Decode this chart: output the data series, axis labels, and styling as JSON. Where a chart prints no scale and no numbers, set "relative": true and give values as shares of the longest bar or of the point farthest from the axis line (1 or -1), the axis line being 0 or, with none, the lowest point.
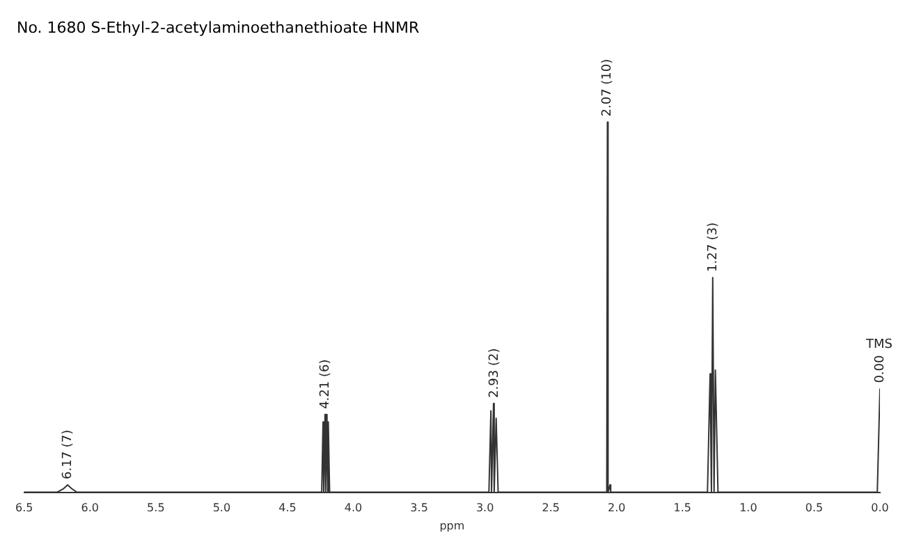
{
  "chart_data": {
    "type": "line",
    "title": "No. 1680 S-Ethyl-2-acetylaminoethanethioate HNMR",
    "xlabel": "ppm",
    "relative": true,
    "grid": false,
    "legend": false,
    "marker": "none",
    "line_style": "solid",
    "xlim": [
      6.5,
      0.0
    ],
    "xticks": [
      6.5,
      {
        "value": 6,
        "label": "6.0"
      },
      5.5,
      {
        "value": 5,
        "label": "5.0"
      },
      4.5,
      {
        "value": 4,
        "label": "4.0"
      },
      3.5,
      {
        "value": 3,
        "label": "3.0"
      },
      2.5,
      {
        "value": 2,
        "label": "2.0"
      },
      1.5,
      {
        "value": 1,
        "label": "1.0"
      },
      0.5,
      {
        "value": 0,
        "label": "0.0"
      }
    ],
    "series": [
      {
        "color": "#333333",
        "x": [
          6.5,
          6.25,
          6.2,
          6.17,
          6.14,
          6.1,
          4.3,
          4.24,
          4.23,
          4.225,
          4.215,
          4.21,
          4.2,
          4.195,
          4.19,
          4.18,
          2.97,
          2.955,
          2.95,
          2.935,
          2.93,
          2.915,
          2.9,
          2.1,
          2.075,
          2.07,
          2.065,
          2.05,
          2.045,
          2.04,
          1.31,
          1.29,
          1.28,
          1.27,
          1.26,
          1.25,
          1.23,
          0.02,
          0.0
        ],
        "values": [
          0,
          0,
          0.01,
          0.02,
          0.01,
          0,
          0,
          0,
          0.19,
          0,
          0.21,
          0,
          0.21,
          0,
          0.19,
          0,
          0,
          0.22,
          0,
          0.24,
          0,
          0.2,
          0,
          0,
          0,
          1,
          0,
          0.02,
          0,
          0,
          0,
          0.32,
          0,
          0.58,
          0,
          0.33,
          0,
          0,
          0.28
        ]
      }
    ],
    "annotations": [
      {
        "text": "6.17 (7)",
        "x": 6.17,
        "y": 0.02
      },
      {
        "text": "4.21 (6)",
        "x": 4.21,
        "y": 0.21
      },
      {
        "text": "2.93 (2)",
        "x": 2.93,
        "y": 0.24
      },
      {
        "text": "2.07 (10)",
        "x": 2.07,
        "y": 1
      },
      {
        "text": "1.27 (3)",
        "x": 1.27,
        "y": 0.58
      },
      {
        "text": "0.00",
        "x": 0.0,
        "y": 0.28
      },
      "TMS"
    ]
  }
}
